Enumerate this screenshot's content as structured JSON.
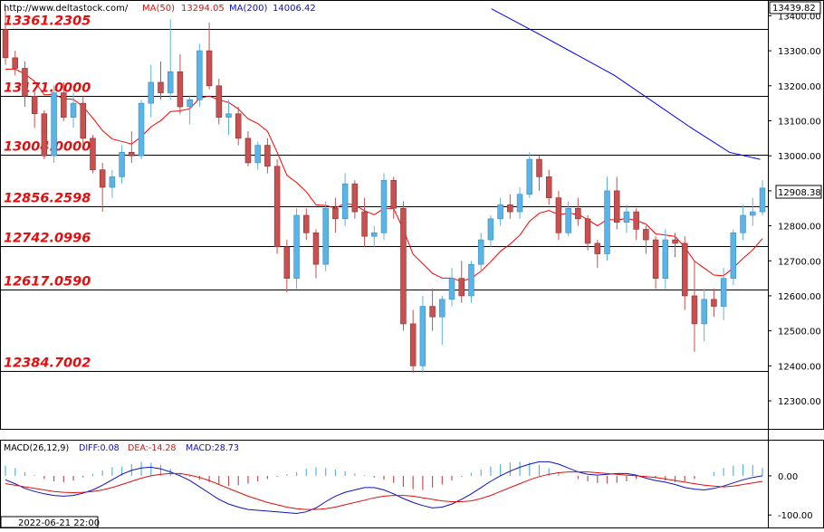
{
  "header": {
    "url": "http://www.deltastock.com/",
    "ma50_label": "MA(50)",
    "ma50_value": "13294.05",
    "ma200_label": "MA(200)",
    "ma200_value": "14006.42"
  },
  "macd_header": {
    "name": "MACD(26,12,9)",
    "diff": "DIFF:0.08",
    "dea": "DEA:-14.28",
    "macd": "MACD:28.73"
  },
  "footer": {
    "timestamp": "2022-06-21 22:00"
  },
  "colors": {
    "bull": "#5ab4e6",
    "bear": "#c85050",
    "wick": "#333333",
    "ma50": "#ff0000",
    "ma200": "#0000ff",
    "level_label": "#e01010",
    "header_url": "#000000",
    "header_ma50": "#e01010",
    "header_ma200": "#1010c0",
    "macd_diff": "#1010c0",
    "macd_dea": "#e01010",
    "macd_hist": "#1010c0",
    "hist_pos": "#5ab4e6",
    "hist_neg": "#c85050"
  },
  "chart_data": [
    {
      "type": "candlestick",
      "title": "",
      "ylim": [
        12220,
        13445
      ],
      "y_ticks": [
        "12300.00",
        "12400.00",
        "12500.00",
        "12600.00",
        "12700.00",
        "12800.00",
        "12900.00",
        "13000.00",
        "13100.00",
        "13200.00",
        "13300.00",
        "13400.00"
      ],
      "last_price": "12908.38",
      "top_price": "13439.82",
      "levels": [
        "13361.2305",
        "13171.0000",
        "13004.0000",
        "12856.2598",
        "12742.0996",
        "12617.0590",
        "12384.7002"
      ],
      "ma200": [
        [
          0.64,
          13420
        ],
        [
          0.7,
          13350
        ],
        [
          0.8,
          13230
        ],
        [
          0.9,
          13080
        ],
        [
          0.95,
          13010
        ],
        [
          0.99,
          12990
        ]
      ],
      "ohlc": [
        [
          13361,
          13420,
          13260,
          13280
        ],
        [
          13280,
          13300,
          13230,
          13250
        ],
        [
          13250,
          13270,
          13140,
          13170
        ],
        [
          13170,
          13190,
          13080,
          13120
        ],
        [
          13120,
          13130,
          12990,
          13000
        ],
        [
          13000,
          13200,
          12980,
          13180
        ],
        [
          13180,
          13210,
          13100,
          13110
        ],
        [
          13110,
          13180,
          13080,
          13150
        ],
        [
          13150,
          13170,
          13030,
          13050
        ],
        [
          13050,
          13060,
          12950,
          12960
        ],
        [
          12960,
          12980,
          12840,
          12910
        ],
        [
          12910,
          12960,
          12880,
          12940
        ],
        [
          12940,
          13030,
          12920,
          13010
        ],
        [
          13010,
          13070,
          12980,
          13000
        ],
        [
          13000,
          13160,
          12990,
          13150
        ],
        [
          13150,
          13260,
          13110,
          13210
        ],
        [
          13210,
          13270,
          13160,
          13180
        ],
        [
          13180,
          13390,
          13160,
          13240
        ],
        [
          13240,
          13290,
          13120,
          13140
        ],
        [
          13140,
          13170,
          13090,
          13160
        ],
        [
          13160,
          13320,
          13140,
          13300
        ],
        [
          13300,
          13380,
          13190,
          13200
        ],
        [
          13200,
          13220,
          13090,
          13110
        ],
        [
          13110,
          13160,
          13060,
          13120
        ],
        [
          13120,
          13140,
          13030,
          13050
        ],
        [
          13050,
          13070,
          12970,
          12980
        ],
        [
          12980,
          13040,
          12960,
          13030
        ],
        [
          13030,
          13050,
          12950,
          12970
        ],
        [
          12970,
          12990,
          12720,
          12740
        ],
        [
          12740,
          12760,
          12610,
          12650
        ],
        [
          12650,
          12850,
          12620,
          12830
        ],
        [
          12830,
          12850,
          12760,
          12780
        ],
        [
          12780,
          12790,
          12650,
          12690
        ],
        [
          12690,
          12870,
          12670,
          12850
        ],
        [
          12850,
          12880,
          12780,
          12820
        ],
        [
          12820,
          12950,
          12800,
          12920
        ],
        [
          12920,
          12930,
          12820,
          12840
        ],
        [
          12840,
          12880,
          12740,
          12770
        ],
        [
          12770,
          12800,
          12740,
          12780
        ],
        [
          12780,
          12950,
          12760,
          12930
        ],
        [
          12930,
          12940,
          12820,
          12850
        ],
        [
          12850,
          12870,
          12500,
          12520
        ],
        [
          12520,
          12560,
          12380,
          12400
        ],
        [
          12400,
          12600,
          12380,
          12570
        ],
        [
          12570,
          12620,
          12500,
          12540
        ],
        [
          12540,
          12600,
          12460,
          12590
        ],
        [
          12590,
          12680,
          12570,
          12650
        ],
        [
          12650,
          12700,
          12580,
          12600
        ],
        [
          12600,
          12700,
          12580,
          12690
        ],
        [
          12690,
          12780,
          12670,
          12760
        ],
        [
          12760,
          12830,
          12740,
          12820
        ],
        [
          12820,
          12880,
          12800,
          12860
        ],
        [
          12860,
          12890,
          12820,
          12840
        ],
        [
          12840,
          12910,
          12820,
          12890
        ],
        [
          12890,
          13010,
          12880,
          12990
        ],
        [
          12990,
          13000,
          12900,
          12940
        ],
        [
          12940,
          12960,
          12860,
          12880
        ],
        [
          12880,
          12900,
          12760,
          12780
        ],
        [
          12780,
          12870,
          12770,
          12850
        ],
        [
          12850,
          12880,
          12800,
          12820
        ],
        [
          12820,
          12830,
          12730,
          12750
        ],
        [
          12750,
          12760,
          12680,
          12720
        ],
        [
          12720,
          12940,
          12700,
          12900
        ],
        [
          12900,
          12940,
          12790,
          12810
        ],
        [
          12810,
          12860,
          12780,
          12840
        ],
        [
          12840,
          12850,
          12760,
          12790
        ],
        [
          12790,
          12800,
          12720,
          12760
        ],
        [
          12760,
          12770,
          12620,
          12650
        ],
        [
          12650,
          12790,
          12620,
          12760
        ],
        [
          12760,
          12780,
          12710,
          12750
        ],
        [
          12750,
          12770,
          12560,
          12600
        ],
        [
          12600,
          12700,
          12440,
          12520
        ],
        [
          12520,
          12620,
          12470,
          12590
        ],
        [
          12590,
          12620,
          12540,
          12570
        ],
        [
          12570,
          12680,
          12530,
          12650
        ],
        [
          12650,
          12790,
          12630,
          12780
        ],
        [
          12780,
          12860,
          12760,
          12830
        ],
        [
          12830,
          12880,
          12800,
          12840
        ],
        [
          12840,
          12930,
          12830,
          12908
        ]
      ]
    },
    {
      "type": "macd",
      "title": "",
      "ylim": [
        -125,
        60
      ],
      "y_ticks": [
        "0.00",
        "-100.00"
      ],
      "hist": [
        26,
        20,
        10,
        2,
        -8,
        -14,
        -16,
        -12,
        -4,
        5,
        14,
        22,
        24,
        30,
        36,
        34,
        28,
        18,
        8,
        -2,
        -10,
        -16,
        -22,
        -26,
        -24,
        -20,
        -14,
        -8,
        -2,
        4,
        10,
        18,
        22,
        20,
        16,
        12,
        6,
        2,
        -4,
        -10,
        -18,
        -28,
        -34,
        -36,
        -30,
        -22,
        -12,
        -2,
        8,
        16,
        24,
        30,
        34,
        36,
        34,
        28,
        20,
        10,
        0,
        -8,
        -14,
        -18,
        -20,
        -18,
        -14,
        -8,
        -2,
        -6,
        -12,
        -16,
        -14,
        -8,
        0,
        10,
        20,
        26,
        30,
        28,
        20
      ],
      "diff": [
        -10,
        -20,
        -32,
        -40,
        -46,
        -50,
        -52,
        -50,
        -44,
        -36,
        -24,
        -10,
        4,
        14,
        20,
        22,
        18,
        10,
        0,
        -12,
        -28,
        -44,
        -60,
        -72,
        -80,
        -86,
        -88,
        -90,
        -92,
        -94,
        -96,
        -92,
        -82,
        -66,
        -52,
        -42,
        -36,
        -30,
        -30,
        -36,
        -46,
        -58,
        -68,
        -76,
        -82,
        -80,
        -72,
        -60,
        -46,
        -30,
        -14,
        0,
        12,
        22,
        30,
        36,
        36,
        30,
        20,
        10,
        4,
        2,
        4,
        6,
        6,
        2,
        -6,
        -12,
        -16,
        -22,
        -30,
        -34,
        -36,
        -32,
        -26,
        -18,
        -10,
        -4,
        0
      ],
      "dea": [
        -20,
        -24,
        -28,
        -32,
        -36,
        -40,
        -42,
        -43,
        -42,
        -40,
        -36,
        -30,
        -22,
        -14,
        -6,
        0,
        4,
        6,
        6,
        2,
        -4,
        -12,
        -22,
        -32,
        -42,
        -52,
        -60,
        -68,
        -74,
        -80,
        -84,
        -86,
        -86,
        -84,
        -80,
        -74,
        -68,
        -62,
        -56,
        -52,
        -50,
        -50,
        -52,
        -56,
        -60,
        -64,
        -66,
        -66,
        -64,
        -58,
        -50,
        -40,
        -30,
        -20,
        -10,
        -2,
        4,
        8,
        10,
        10,
        10,
        8,
        6,
        4,
        2,
        0,
        -2,
        -4,
        -8,
        -12,
        -16,
        -20,
        -24,
        -26,
        -28,
        -26,
        -22,
        -18,
        -14
      ]
    }
  ]
}
